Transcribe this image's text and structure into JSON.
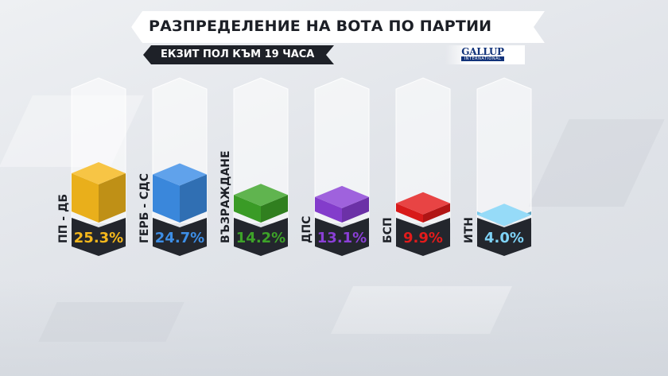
{
  "header": {
    "title": "РАЗПРЕДЕЛЕНИЕ НА ВОТА ПО ПАРТИИ",
    "subtitle": "ЕКЗИТ ПОЛ КЪМ 19 ЧАСА",
    "logo_main": "GALLUP",
    "logo_sub": "INTERNATIONAL"
  },
  "chart_data": {
    "type": "bar",
    "title": "РАЗПРЕДЕЛЕНИЕ НА ВОТА ПО ПАРТИИ",
    "subtitle": "ЕКЗИТ ПОЛ КЪМ 19 ЧАСА",
    "categories": [
      "ПП - ДБ",
      "ГЕРБ - СДС",
      "ВЪЗРАЖДАНЕ",
      "ДПС",
      "БСП",
      "ИТН"
    ],
    "values": [
      25.3,
      24.7,
      14.2,
      13.1,
      9.9,
      4.0
    ],
    "value_labels": [
      "25.3%",
      "24.7%",
      "14.2%",
      "13.1%",
      "9.9%",
      "4.0%"
    ],
    "colors": [
      "#f5b81c",
      "#3d8ee6",
      "#3da328",
      "#8a3fd6",
      "#e31b1b",
      "#7fd3f7"
    ],
    "ylim": [
      0,
      25.3
    ],
    "grid": false
  }
}
